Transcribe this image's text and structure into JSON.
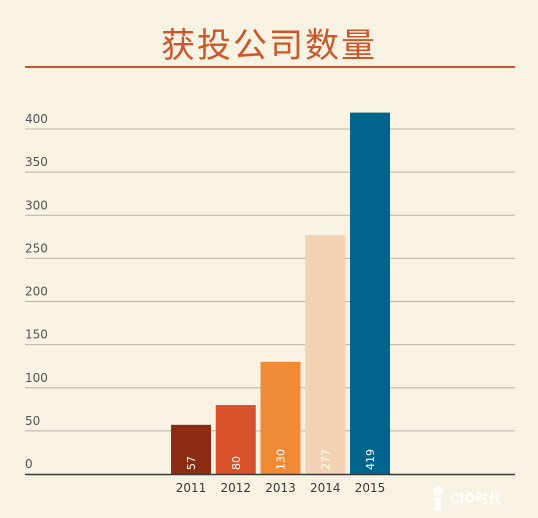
{
  "colors": {
    "background": "#f7f2e2",
    "title": "#c9572b",
    "grid": "#b9b4a8",
    "axis": "#3a3a3a",
    "tick_text": "#555555"
  },
  "watermark": {
    "text": "CIO时代"
  },
  "chart_data": {
    "type": "bar",
    "title": "获投公司数量",
    "xlabel": "",
    "ylabel": "",
    "categories": [
      "2011",
      "2012",
      "2013",
      "2014",
      "2015"
    ],
    "values": [
      57,
      80,
      130,
      277,
      419
    ],
    "bar_labels": [
      "57",
      "80",
      "130",
      "277",
      "419"
    ],
    "bar_colors": [
      "#8b2c12",
      "#d9512b",
      "#f08a35",
      "#f3d2b3",
      "#00658c"
    ],
    "ylim": [
      0,
      400
    ],
    "yticks": [
      0,
      50,
      100,
      150,
      200,
      250,
      300,
      350,
      400
    ],
    "grid": true,
    "legend": "none"
  }
}
